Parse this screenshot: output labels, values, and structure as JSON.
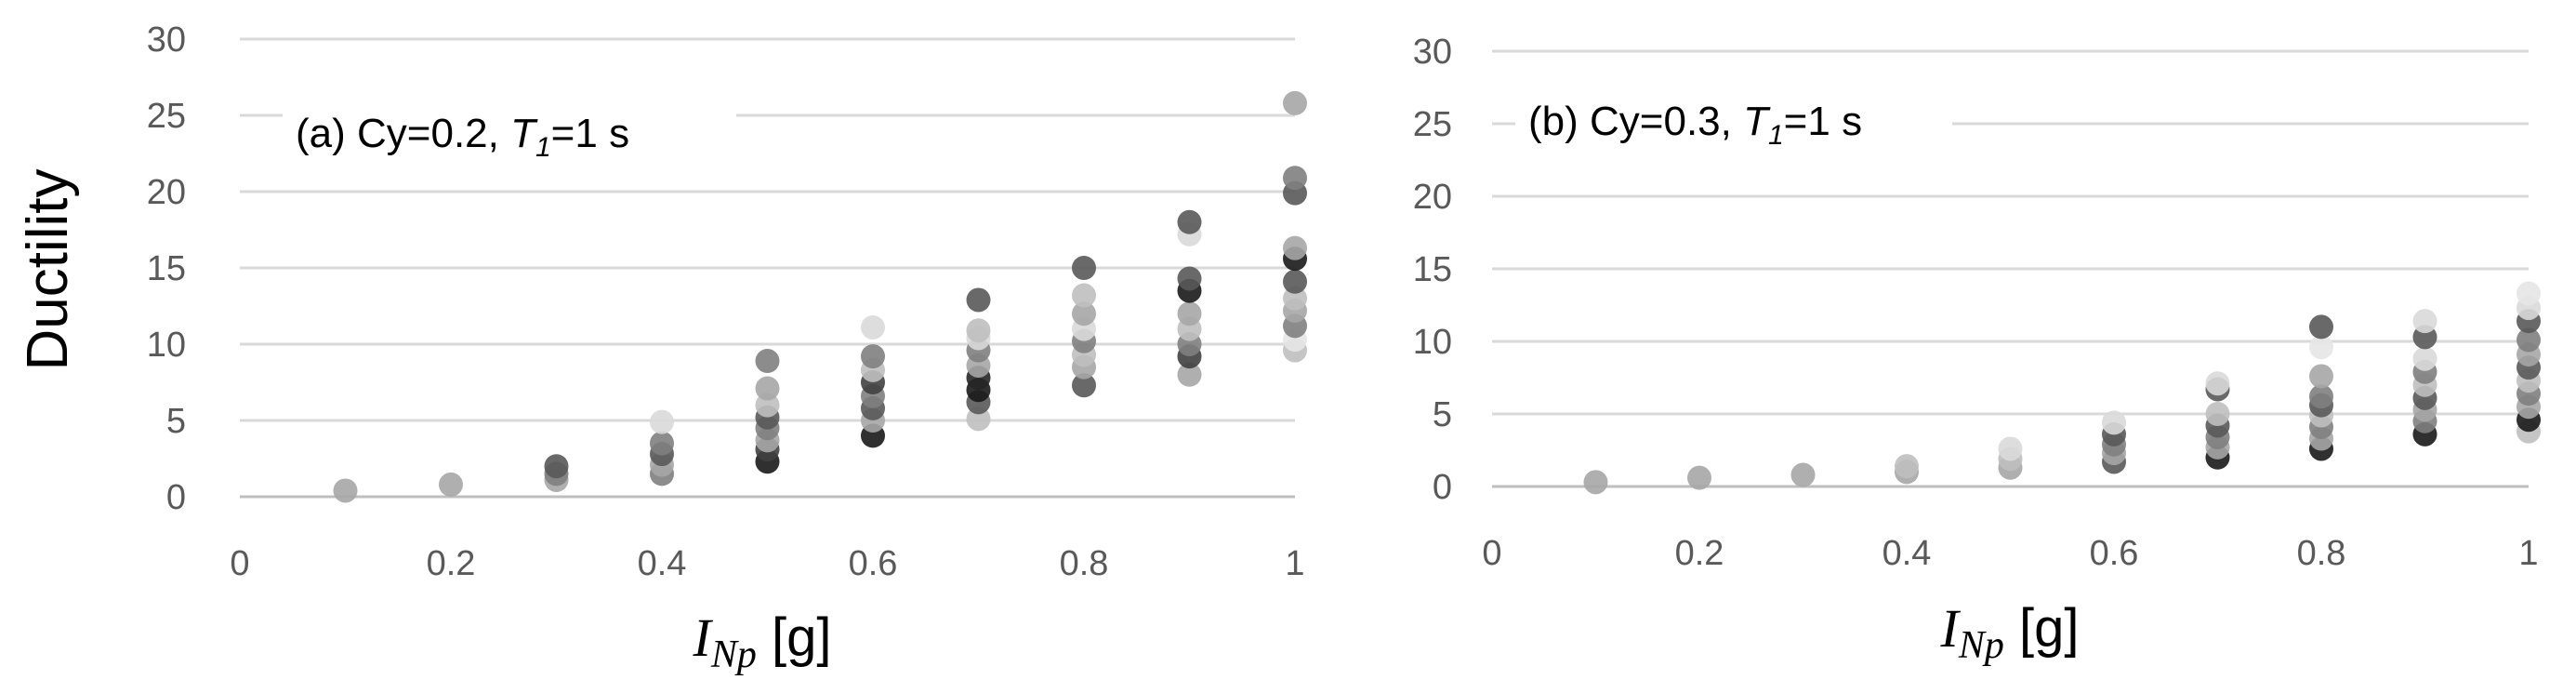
{
  "chart_data": [
    {
      "type": "scatter",
      "annotation": {
        "prefix": "(a) Cy=0.2, ",
        "t": "T",
        "sub": "1",
        "suffix": "=1 s"
      },
      "ylabel": "Ductility",
      "xlabel": {
        "main": "I",
        "sub": "Np",
        "unit": " [g]"
      },
      "xlim": [
        0,
        1
      ],
      "ylim": [
        0,
        30
      ],
      "x_ticks": [
        "0",
        "0.2",
        "0.4",
        "0.6",
        "0.8",
        "1"
      ],
      "y_ticks": [
        "0",
        "5",
        "10",
        "15",
        "20",
        "25",
        "30"
      ],
      "grid": "horizontal",
      "colors": {
        "grid": "#d9d9d9",
        "axis": "#bfbfbf"
      },
      "points": [
        {
          "x": 0.1,
          "y": 0.4,
          "c": "#a6a6a6"
        },
        {
          "x": 0.2,
          "y": 0.8,
          "c": "#a6a6a6"
        },
        {
          "x": 0.3,
          "y": 1.1,
          "c": "#a6a6a6"
        },
        {
          "x": 0.3,
          "y": 1.5,
          "c": "#7f7f7f"
        },
        {
          "x": 0.3,
          "y": 2.0,
          "c": "#595959"
        },
        {
          "x": 0.4,
          "y": 1.5,
          "c": "#7f7f7f"
        },
        {
          "x": 0.4,
          "y": 2.1,
          "c": "#a6a6a6"
        },
        {
          "x": 0.4,
          "y": 2.8,
          "c": "#595959"
        },
        {
          "x": 0.4,
          "y": 3.5,
          "c": "#7f7f7f"
        },
        {
          "x": 0.4,
          "y": 4.9,
          "c": "#d9d9d9"
        },
        {
          "x": 0.5,
          "y": 2.3,
          "c": "#1a1a1a"
        },
        {
          "x": 0.5,
          "y": 3.1,
          "c": "#404040"
        },
        {
          "x": 0.5,
          "y": 3.7,
          "c": "#a6a6a6"
        },
        {
          "x": 0.5,
          "y": 4.5,
          "c": "#7f7f7f"
        },
        {
          "x": 0.5,
          "y": 5.2,
          "c": "#595959"
        },
        {
          "x": 0.5,
          "y": 6.0,
          "c": "#bfbfbf"
        },
        {
          "x": 0.5,
          "y": 7.1,
          "c": "#a6a6a6"
        },
        {
          "x": 0.5,
          "y": 8.9,
          "c": "#7f7f7f"
        },
        {
          "x": 0.6,
          "y": 4.0,
          "c": "#1a1a1a"
        },
        {
          "x": 0.6,
          "y": 5.0,
          "c": "#a6a6a6"
        },
        {
          "x": 0.6,
          "y": 5.8,
          "c": "#595959"
        },
        {
          "x": 0.6,
          "y": 6.6,
          "c": "#7f7f7f"
        },
        {
          "x": 0.6,
          "y": 7.5,
          "c": "#404040"
        },
        {
          "x": 0.6,
          "y": 8.3,
          "c": "#bfbfbf"
        },
        {
          "x": 0.6,
          "y": 9.2,
          "c": "#7f7f7f"
        },
        {
          "x": 0.6,
          "y": 11.1,
          "c": "#d9d9d9"
        },
        {
          "x": 0.7,
          "y": 5.1,
          "c": "#bfbfbf"
        },
        {
          "x": 0.7,
          "y": 6.2,
          "c": "#595959"
        },
        {
          "x": 0.7,
          "y": 7.0,
          "c": "#1a1a1a"
        },
        {
          "x": 0.7,
          "y": 7.8,
          "c": "#262626"
        },
        {
          "x": 0.7,
          "y": 8.6,
          "c": "#a6a6a6"
        },
        {
          "x": 0.7,
          "y": 9.6,
          "c": "#7f7f7f"
        },
        {
          "x": 0.7,
          "y": 10.4,
          "c": "#d9d9d9"
        },
        {
          "x": 0.7,
          "y": 10.9,
          "c": "#bfbfbf"
        },
        {
          "x": 0.7,
          "y": 12.9,
          "c": "#595959"
        },
        {
          "x": 0.8,
          "y": 7.3,
          "c": "#595959"
        },
        {
          "x": 0.8,
          "y": 8.5,
          "c": "#a6a6a6"
        },
        {
          "x": 0.8,
          "y": 9.3,
          "c": "#bfbfbf"
        },
        {
          "x": 0.8,
          "y": 10.2,
          "c": "#7f7f7f"
        },
        {
          "x": 0.8,
          "y": 11.0,
          "c": "#d9d9d9"
        },
        {
          "x": 0.8,
          "y": 12.0,
          "c": "#a6a6a6"
        },
        {
          "x": 0.8,
          "y": 13.2,
          "c": "#bfbfbf"
        },
        {
          "x": 0.8,
          "y": 15.0,
          "c": "#595959"
        },
        {
          "x": 0.9,
          "y": 8.0,
          "c": "#a6a6a6"
        },
        {
          "x": 0.9,
          "y": 9.2,
          "c": "#404040"
        },
        {
          "x": 0.9,
          "y": 10.0,
          "c": "#7f7f7f"
        },
        {
          "x": 0.9,
          "y": 11.0,
          "c": "#bfbfbf"
        },
        {
          "x": 0.9,
          "y": 12.0,
          "c": "#a6a6a6"
        },
        {
          "x": 0.9,
          "y": 13.5,
          "c": "#1a1a1a"
        },
        {
          "x": 0.9,
          "y": 14.3,
          "c": "#595959"
        },
        {
          "x": 0.9,
          "y": 17.2,
          "c": "#d9d9d9"
        },
        {
          "x": 0.9,
          "y": 18.0,
          "c": "#595959"
        },
        {
          "x": 1.0,
          "y": 9.6,
          "c": "#bfbfbf"
        },
        {
          "x": 1.0,
          "y": 10.3,
          "c": "#e6e6e6"
        },
        {
          "x": 1.0,
          "y": 11.2,
          "c": "#7f7f7f"
        },
        {
          "x": 1.0,
          "y": 12.2,
          "c": "#a6a6a6"
        },
        {
          "x": 1.0,
          "y": 13.0,
          "c": "#bfbfbf"
        },
        {
          "x": 1.0,
          "y": 14.1,
          "c": "#595959"
        },
        {
          "x": 1.0,
          "y": 15.6,
          "c": "#1a1a1a"
        },
        {
          "x": 1.0,
          "y": 16.3,
          "c": "#a6a6a6"
        },
        {
          "x": 1.0,
          "y": 19.9,
          "c": "#595959"
        },
        {
          "x": 1.0,
          "y": 20.9,
          "c": "#7f7f7f"
        },
        {
          "x": 1.0,
          "y": 25.8,
          "c": "#a6a6a6"
        }
      ]
    },
    {
      "type": "scatter",
      "annotation": {
        "prefix": "(b) Cy=0.3, ",
        "t": "T",
        "sub": "1",
        "suffix": "=1 s"
      },
      "ylabel": "",
      "xlabel": {
        "main": "I",
        "sub": "Np",
        "unit": " [g]"
      },
      "xlim": [
        0,
        1
      ],
      "ylim": [
        0,
        30
      ],
      "x_ticks": [
        "0",
        "0.2",
        "0.4",
        "0.6",
        "0.8",
        "1"
      ],
      "y_ticks": [
        "0",
        "5",
        "10",
        "15",
        "20",
        "25",
        "30"
      ],
      "grid": "horizontal",
      "colors": {
        "grid": "#d9d9d9",
        "axis": "#bfbfbf"
      },
      "points": [
        {
          "x": 0.1,
          "y": 0.3,
          "c": "#a6a6a6"
        },
        {
          "x": 0.2,
          "y": 0.6,
          "c": "#a6a6a6"
        },
        {
          "x": 0.3,
          "y": 0.8,
          "c": "#a6a6a6"
        },
        {
          "x": 0.4,
          "y": 1.0,
          "c": "#a6a6a6"
        },
        {
          "x": 0.4,
          "y": 1.4,
          "c": "#bfbfbf"
        },
        {
          "x": 0.5,
          "y": 1.3,
          "c": "#a6a6a6"
        },
        {
          "x": 0.5,
          "y": 1.9,
          "c": "#bfbfbf"
        },
        {
          "x": 0.5,
          "y": 2.6,
          "c": "#d9d9d9"
        },
        {
          "x": 0.6,
          "y": 1.7,
          "c": "#595959"
        },
        {
          "x": 0.6,
          "y": 2.3,
          "c": "#a6a6a6"
        },
        {
          "x": 0.6,
          "y": 2.9,
          "c": "#7f7f7f"
        },
        {
          "x": 0.6,
          "y": 3.6,
          "c": "#595959"
        },
        {
          "x": 0.6,
          "y": 4.4,
          "c": "#d9d9d9"
        },
        {
          "x": 0.7,
          "y": 2.0,
          "c": "#1a1a1a"
        },
        {
          "x": 0.7,
          "y": 2.7,
          "c": "#a6a6a6"
        },
        {
          "x": 0.7,
          "y": 3.4,
          "c": "#7f7f7f"
        },
        {
          "x": 0.7,
          "y": 4.2,
          "c": "#595959"
        },
        {
          "x": 0.7,
          "y": 5.0,
          "c": "#bfbfbf"
        },
        {
          "x": 0.7,
          "y": 6.7,
          "c": "#595959"
        },
        {
          "x": 0.7,
          "y": 7.1,
          "c": "#d9d9d9"
        },
        {
          "x": 0.8,
          "y": 2.6,
          "c": "#1a1a1a"
        },
        {
          "x": 0.8,
          "y": 3.3,
          "c": "#a6a6a6"
        },
        {
          "x": 0.8,
          "y": 4.1,
          "c": "#7f7f7f"
        },
        {
          "x": 0.8,
          "y": 4.9,
          "c": "#bfbfbf"
        },
        {
          "x": 0.8,
          "y": 5.6,
          "c": "#595959"
        },
        {
          "x": 0.8,
          "y": 6.2,
          "c": "#7f7f7f"
        },
        {
          "x": 0.8,
          "y": 7.6,
          "c": "#a6a6a6"
        },
        {
          "x": 0.8,
          "y": 9.6,
          "c": "#e6e6e6"
        },
        {
          "x": 0.8,
          "y": 11.0,
          "c": "#595959"
        },
        {
          "x": 0.9,
          "y": 3.6,
          "c": "#1a1a1a"
        },
        {
          "x": 0.9,
          "y": 4.5,
          "c": "#7f7f7f"
        },
        {
          "x": 0.9,
          "y": 5.3,
          "c": "#a6a6a6"
        },
        {
          "x": 0.9,
          "y": 6.1,
          "c": "#595959"
        },
        {
          "x": 0.9,
          "y": 7.0,
          "c": "#bfbfbf"
        },
        {
          "x": 0.9,
          "y": 7.9,
          "c": "#7f7f7f"
        },
        {
          "x": 0.9,
          "y": 8.8,
          "c": "#d9d9d9"
        },
        {
          "x": 0.9,
          "y": 10.3,
          "c": "#595959"
        },
        {
          "x": 0.9,
          "y": 11.4,
          "c": "#d9d9d9"
        },
        {
          "x": 1.0,
          "y": 3.8,
          "c": "#bfbfbf"
        },
        {
          "x": 1.0,
          "y": 4.6,
          "c": "#1a1a1a"
        },
        {
          "x": 1.0,
          "y": 5.5,
          "c": "#a6a6a6"
        },
        {
          "x": 1.0,
          "y": 6.4,
          "c": "#7f7f7f"
        },
        {
          "x": 1.0,
          "y": 7.3,
          "c": "#bfbfbf"
        },
        {
          "x": 1.0,
          "y": 8.2,
          "c": "#595959"
        },
        {
          "x": 1.0,
          "y": 9.1,
          "c": "#a6a6a6"
        },
        {
          "x": 1.0,
          "y": 10.1,
          "c": "#7f7f7f"
        },
        {
          "x": 1.0,
          "y": 11.4,
          "c": "#595959"
        },
        {
          "x": 1.0,
          "y": 12.3,
          "c": "#d9d9d9"
        },
        {
          "x": 1.0,
          "y": 13.3,
          "c": "#e6e6e6"
        }
      ]
    }
  ]
}
